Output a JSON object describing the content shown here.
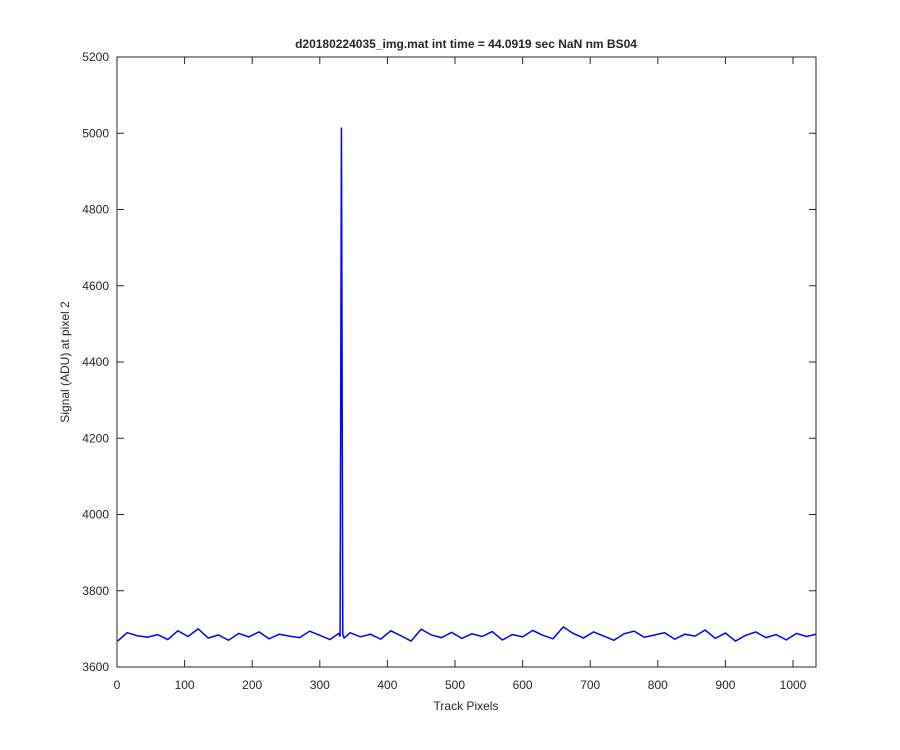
{
  "chart_data": {
    "type": "line",
    "title": "d20180224035_img.mat int time = 44.0919 sec  NaN nm BS04",
    "x_label": "Track Pixels",
    "y_label": "Signal (ADU) at pixel 2",
    "x": [
      1,
      15,
      30,
      45,
      60,
      75,
      90,
      105,
      120,
      135,
      150,
      165,
      180,
      195,
      210,
      225,
      240,
      255,
      270,
      285,
      300,
      315,
      328,
      330,
      332,
      334,
      336,
      345,
      360,
      375,
      390,
      405,
      420,
      435,
      450,
      465,
      480,
      495,
      510,
      525,
      540,
      555,
      570,
      585,
      600,
      615,
      630,
      645,
      660,
      675,
      690,
      705,
      720,
      735,
      750,
      765,
      780,
      795,
      810,
      825,
      840,
      855,
      870,
      885,
      900,
      915,
      930,
      945,
      960,
      975,
      990,
      1005,
      1020,
      1034
    ],
    "series": [
      {
        "color": "#0000ff",
        "values": [
          3668,
          3690,
          3682,
          3678,
          3685,
          3672,
          3695,
          3680,
          3700,
          3676,
          3684,
          3670,
          3688,
          3679,
          3692,
          3674,
          3686,
          3681,
          3677,
          3694,
          3683,
          3672,
          3688,
          3680,
          5015,
          3685,
          3676,
          3690,
          3679,
          3686,
          3673,
          3695,
          3682,
          3668,
          3699,
          3684,
          3677,
          3691,
          3675,
          3687,
          3680,
          3693,
          3671,
          3685,
          3679,
          3696,
          3683,
          3674,
          3705,
          3688,
          3676,
          3692,
          3681,
          3670,
          3687,
          3694,
          3678,
          3684,
          3690,
          3673,
          3686,
          3681,
          3697,
          3675,
          3689,
          3668,
          3683,
          3692,
          3677,
          3685,
          3671,
          3688,
          3680,
          3686
        ]
      }
    ],
    "xlim": [
      0,
      1034
    ],
    "ylim": [
      3600,
      5200
    ],
    "xticks": [
      0,
      100,
      200,
      300,
      400,
      500,
      600,
      700,
      800,
      900,
      1000
    ],
    "yticks": [
      3600,
      3800,
      4000,
      4200,
      4400,
      4600,
      4800,
      5000,
      5200
    ]
  }
}
